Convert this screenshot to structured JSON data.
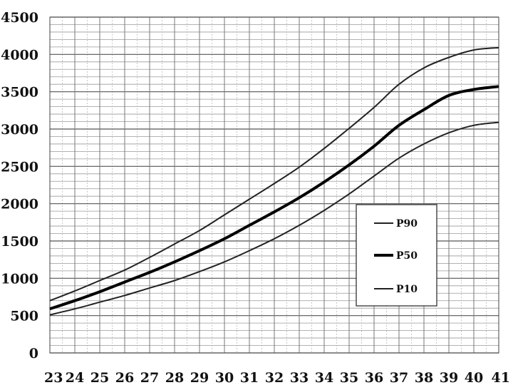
{
  "chart_data": {
    "type": "line",
    "title": "",
    "xlabel": "",
    "ylabel": "",
    "x": [
      23,
      24,
      25,
      26,
      27,
      28,
      29,
      30,
      31,
      32,
      33,
      34,
      35,
      36,
      37,
      38,
      39,
      40,
      41
    ],
    "xlim": [
      23,
      41
    ],
    "ylim": [
      0,
      4500
    ],
    "x_ticks": [
      "23",
      "24",
      "25",
      "26",
      "27",
      "28",
      "29",
      "30",
      "31",
      "32",
      "33",
      "34",
      "35",
      "36",
      "37",
      "38",
      "39",
      "40",
      "41"
    ],
    "y_ticks": [
      "0",
      "500",
      "1000",
      "1500",
      "2000",
      "2500",
      "3000",
      "3500",
      "4000",
      "4500"
    ],
    "grid": true,
    "legend_position": "lower-right",
    "series": [
      {
        "name": "P90",
        "color": "#222222",
        "values": [
          700,
          830,
          970,
          1110,
          1280,
          1460,
          1640,
          1850,
          2060,
          2270,
          2490,
          2740,
          3010,
          3290,
          3600,
          3820,
          3960,
          4060,
          4090
        ]
      },
      {
        "name": "P50",
        "color": "#000000",
        "values": [
          590,
          700,
          820,
          950,
          1080,
          1220,
          1370,
          1530,
          1710,
          1890,
          2080,
          2290,
          2520,
          2770,
          3050,
          3260,
          3450,
          3530,
          3570
        ]
      },
      {
        "name": "P10",
        "color": "#222222",
        "values": [
          510,
          590,
          680,
          770,
          870,
          970,
          1090,
          1220,
          1370,
          1530,
          1710,
          1910,
          2130,
          2370,
          2610,
          2800,
          2950,
          3050,
          3090
        ]
      }
    ]
  }
}
